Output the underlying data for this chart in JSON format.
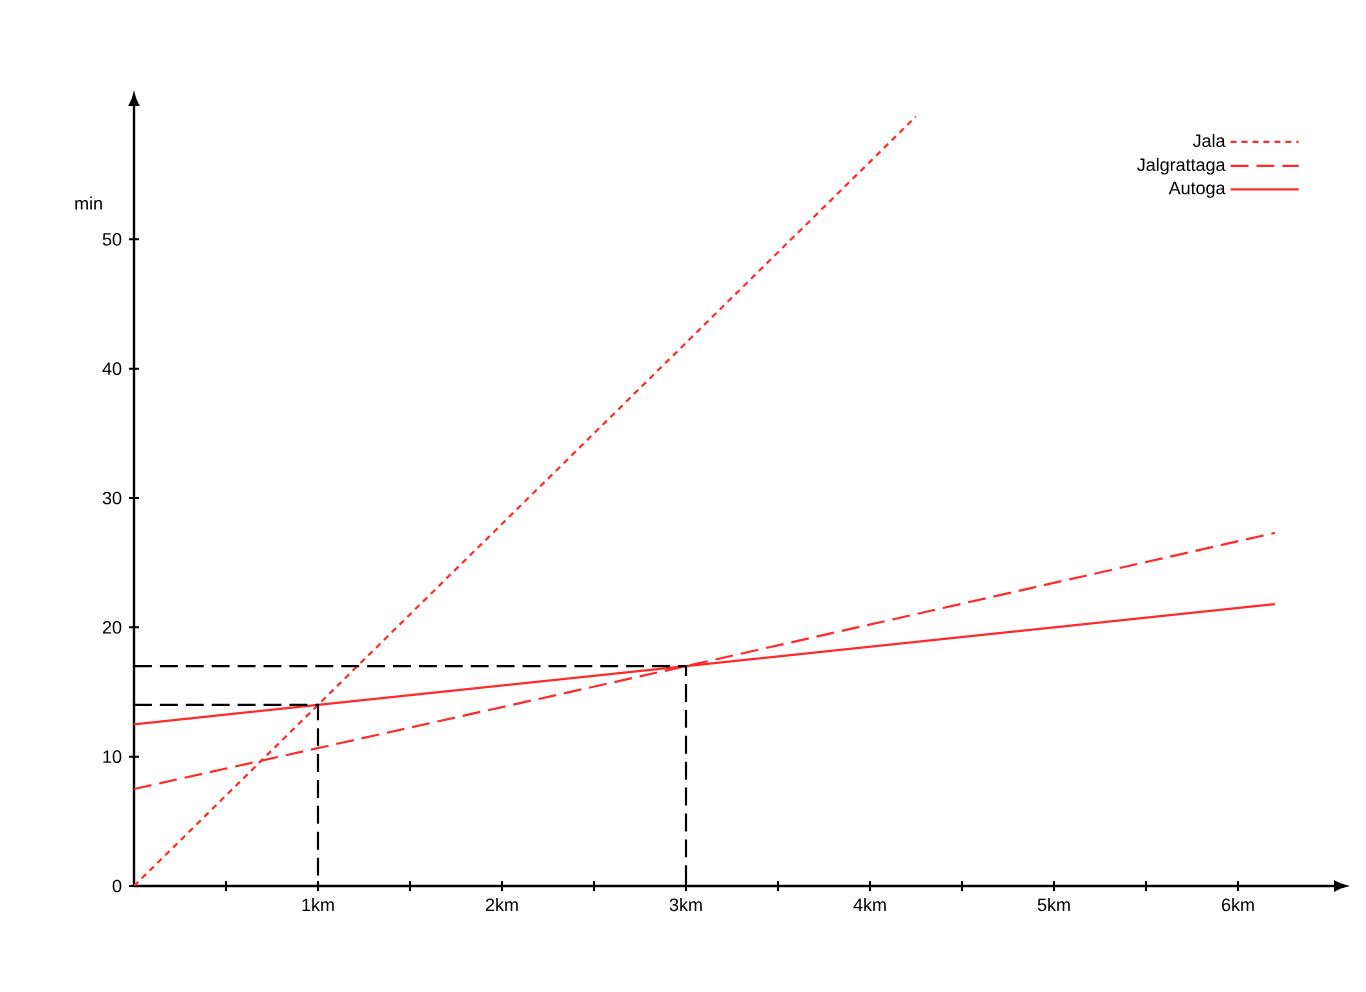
{
  "chart_data": {
    "type": "line",
    "ylabel": "min",
    "xlim": [
      0,
      6.5
    ],
    "ylim": [
      0,
      60
    ],
    "xticks": [
      {
        "value": 0.5,
        "label": null
      },
      {
        "value": 1,
        "label": "1km"
      },
      {
        "value": 1.5,
        "label": null
      },
      {
        "value": 2,
        "label": "2km"
      },
      {
        "value": 2.5,
        "label": null
      },
      {
        "value": 3,
        "label": "3km"
      },
      {
        "value": 3.5,
        "label": null
      },
      {
        "value": 4,
        "label": "4km"
      },
      {
        "value": 4.5,
        "label": null
      },
      {
        "value": 5,
        "label": "5km"
      },
      {
        "value": 5.5,
        "label": null
      },
      {
        "value": 6,
        "label": "6km"
      }
    ],
    "yticks": [
      0,
      10,
      20,
      30,
      40,
      50
    ],
    "legend": "top right",
    "marker": "none",
    "series": [
      {
        "name": "Jala",
        "color": "#ff2a2a",
        "line_style": "dotted",
        "x": [
          0,
          4.25
        ],
        "values": [
          0,
          59.5
        ]
      },
      {
        "name": "Jalgrattaga",
        "color": "#ff2a2a",
        "line_style": "dashed",
        "x": [
          0,
          3,
          6.2
        ],
        "values": [
          7.5,
          17,
          27.3
        ]
      },
      {
        "name": "Autoga",
        "color": "#ff2a2a",
        "line_style": "solid",
        "x": [
          0,
          1,
          3,
          6.2
        ],
        "values": [
          12.5,
          14,
          17,
          21.8
        ]
      },
      {
        "color": "#000000",
        "line_style": "dashed",
        "x": [
          0,
          1,
          1
        ],
        "values": [
          14,
          14,
          0
        ]
      },
      {
        "color": "#000000",
        "line_style": "dashed",
        "x": [
          0,
          3,
          3
        ],
        "values": [
          17,
          17,
          0
        ]
      }
    ]
  }
}
